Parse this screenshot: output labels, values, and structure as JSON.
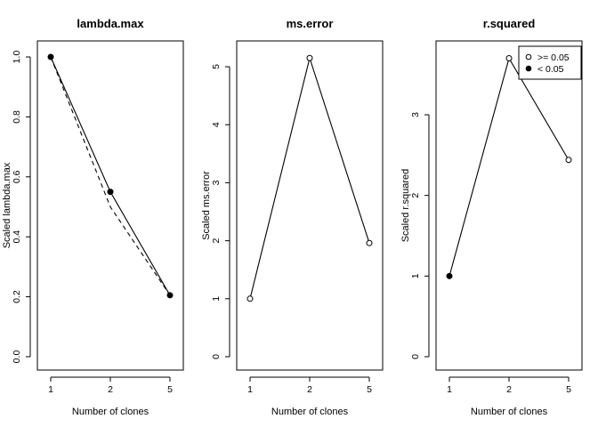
{
  "chart_data": [
    {
      "type": "line",
      "title": "lambda.max",
      "xlabel": "Number of clones",
      "ylabel": "Scaled lambda.max",
      "x_categories": [
        "1",
        "2",
        "5"
      ],
      "ylim": [
        0,
        1
      ],
      "y_ticks": [
        "0.0",
        "0.2",
        "0.4",
        "0.6",
        "0.8",
        "1.0"
      ],
      "series": [
        {
          "style": "solid",
          "values": [
            1.0,
            0.55,
            0.205
          ],
          "point_fill": [
            "filled",
            "filled",
            "filled"
          ]
        },
        {
          "style": "dashed",
          "values": [
            1.0,
            0.5,
            0.205
          ]
        }
      ]
    },
    {
      "type": "line",
      "title": "ms.error",
      "xlabel": "Number of clones",
      "ylabel": "Scaled ms.error",
      "x_categories": [
        "1",
        "2",
        "5"
      ],
      "ylim": [
        0,
        5.2
      ],
      "y_ticks": [
        "0",
        "1",
        "2",
        "3",
        "4",
        "5"
      ],
      "series": [
        {
          "style": "solid",
          "values": [
            1.0,
            5.15,
            1.96
          ],
          "point_fill": [
            "open",
            "open",
            "open"
          ]
        }
      ]
    },
    {
      "type": "line",
      "title": "r.squared",
      "xlabel": "Number of clones",
      "ylabel": "Scaled r.squared",
      "x_categories": [
        "1",
        "2",
        "5"
      ],
      "ylim": [
        0,
        3.7
      ],
      "y_ticks": [
        "0",
        "1",
        "2",
        "3"
      ],
      "series": [
        {
          "style": "solid",
          "values": [
            1.0,
            3.7,
            2.44
          ],
          "point_fill": [
            "filled",
            "open",
            "open"
          ]
        }
      ],
      "legend": {
        "position": "top-right",
        "entries": [
          {
            "label": ">= 0.05",
            "marker": "open"
          },
          {
            "label": "< 0.05",
            "marker": "filled"
          }
        ]
      }
    }
  ]
}
